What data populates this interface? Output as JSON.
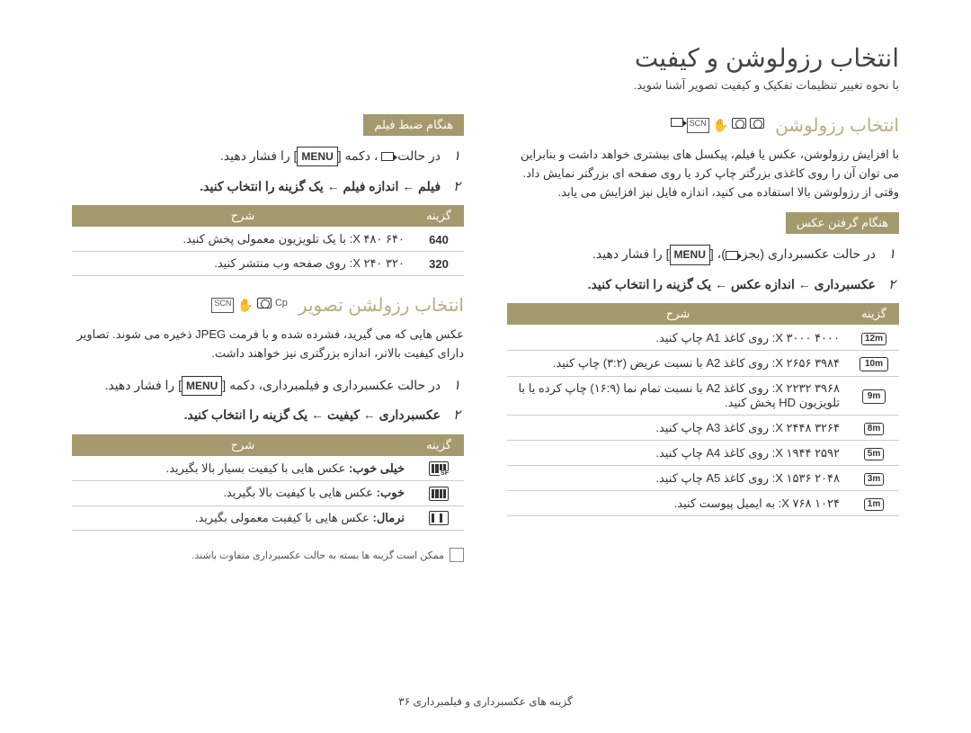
{
  "page": {
    "title": "انتخاب رزولوشن و کیفیت",
    "subtitle": "با نحوه تغییر تنظیمات تفکیک و کیفیت تصویر آشنا شوید.",
    "footer": "گزینه های عکسبرداری و فیلمبرداری  ۳۶"
  },
  "right": {
    "section_title": "انتخاب رزولوشن",
    "desc": "با افزایش رزولوشن، عکس یا فیلم، پیکسل های بیشتری خواهد داشت و بنابراین می توان آن را روی کاغذی بزرگتر چاپ کرد یا روی صفحه ای بزرگتر نمایش داد. وقتی از رزولوشن بالا استفاده می کنید، اندازه فایل نیز افزایش می یابد.",
    "sub_header": "هنگام گرفتن عکس",
    "step1_a": "در حالت عکسبرداری (بجز ",
    "step1_b": ")، ",
    "step1_c": " را فشار دهید.",
    "step2": "عکسبرداری ← اندازه عکس ← یک گزینه را انتخاب کنید.",
    "th_opt": "گزینه",
    "th_desc": "شرح",
    "rows": [
      {
        "icon": "12m",
        "desc": "۴۰۰۰ X ۳۰۰۰: روی کاغذ A1 چاپ کنید."
      },
      {
        "icon": "10m",
        "wide": true,
        "desc": "۳۹۸۴ X ۲۶۵۶: روی کاغذ A2 با نسبت عریض (۳:۲) چاپ کنید."
      },
      {
        "icon": "9m",
        "wide": true,
        "desc": "۳۹۶۸ X ۲۲۳۲: روی کاغذ A2 با نسبت تمام نما (۱۶:۹) چاپ کرده یا با تلویزیون HD پخش کنید."
      },
      {
        "icon": "8m",
        "desc": "۳۲۶۴ X ۲۴۴۸: روی کاغذ A3 چاپ کنید."
      },
      {
        "icon": "5m",
        "desc": "۲۵۹۲ X ۱۹۴۴: روی کاغذ A4 چاپ کنید."
      },
      {
        "icon": "3m",
        "desc": "۲۰۴۸ X ۱۵۳۶: روی کاغذ A5 چاپ کنید."
      },
      {
        "icon": "1m",
        "desc": "۱۰۲۴ X ۷۶۸: به ایمیل پیوست کنید."
      }
    ]
  },
  "left_top": {
    "sub_header": "هنگام ضبط فیلم",
    "step1_a": "در حالت ",
    "step1_b": " ، دکمه ",
    "step1_c": " را فشار دهید.",
    "step2": "فیلم ← اندازه فیلم ← یک گزینه را انتخاب کنید.",
    "th_opt": "گزینه",
    "th_desc": "شرح",
    "rows": [
      {
        "icon": "640",
        "desc": "۶۴۰ X ۴۸۰: با یک تلویزیون معمولی پخش کنید."
      },
      {
        "icon": "320",
        "desc": "۳۲۰ X ۲۴۰: روی صفحه وب منتشر کنید."
      }
    ]
  },
  "left_bot": {
    "section_title": "انتخاب رزولشن تصویر",
    "desc": "عکس هایی که می گیرید، فشرده شده و با فرمت JPEG ذخیره می شوند. تصاویر دارای کیفیت بالاتر، اندازه بزرگتری نیز خواهند داشت.",
    "step1_a": "در حالت عکسبرداری و فیلمبرداری، دکمه ",
    "step1_b": " را فشار دهید.",
    "step2": "عکسبرداری ← کیفیت ← یک گزینه را انتخاب کنید.",
    "th_opt": "گزینه",
    "th_desc": "شرح",
    "rows": [
      {
        "q": "sf",
        "desc": "خیلی خوب: عکس هایی با کیفیت بسیار بالا بگیرید."
      },
      {
        "q": "f",
        "desc": "خوب: عکس هایی با کیفیت بالا بگیرید."
      },
      {
        "q": "n",
        "desc": "نرمال: عکس هایی با کیفیت معمولی بگیرید."
      }
    ],
    "note": "ممکن است گزینه ها بسته به حالت عکسبرداری متفاوت باشند."
  }
}
